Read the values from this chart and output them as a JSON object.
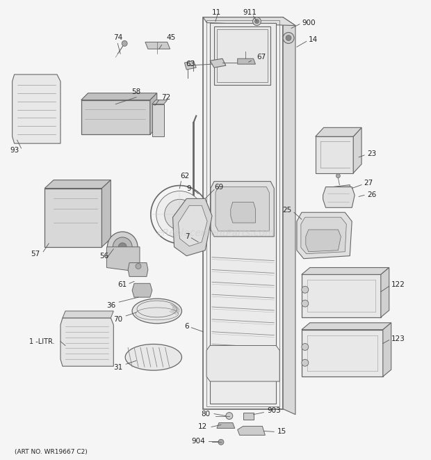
{
  "footer": "(ART NO. WR19667 C2)",
  "watermark": "eReplacementParts.com",
  "bg_color": "#f5f5f5",
  "lc": "#666666",
  "tc": "#222222",
  "wc_alpha": 0.25
}
